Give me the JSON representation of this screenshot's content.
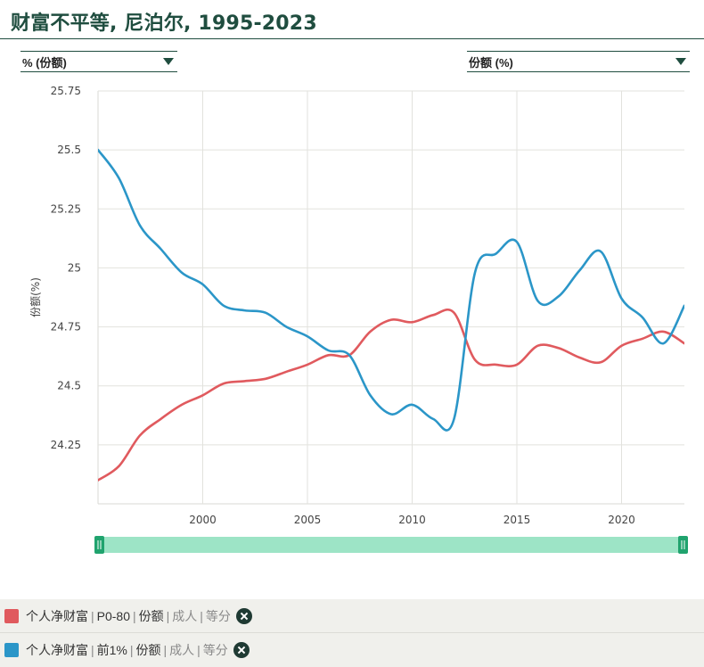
{
  "page": {
    "title": "财富不平等, 尼泊尔, 1995-2023"
  },
  "selectors": {
    "left_label": "% (份额)",
    "right_label": "份额 (%)"
  },
  "legend": [
    {
      "color": "#e05a5e",
      "parts": [
        "个人净财富",
        "P0-80",
        "份额",
        "成人",
        "等分"
      ]
    },
    {
      "color": "#2b96c8",
      "parts": [
        "个人净财富",
        "前1%",
        "份额",
        "成人",
        "等分"
      ]
    }
  ],
  "chart_data": {
    "type": "line",
    "ylabel": "份额(%)",
    "xlim": [
      1995,
      2023
    ],
    "ylim": [
      24.0,
      25.75
    ],
    "yticks": [
      24.25,
      24.5,
      24.75,
      25,
      25.25,
      25.5,
      25.75
    ],
    "ytick_labels": [
      "24.25",
      "24.5",
      "24.75",
      "25",
      "25.25",
      "25.5",
      "25.75"
    ],
    "xticks": [
      2000,
      2005,
      2010,
      2015,
      2020
    ],
    "grid": true,
    "x": [
      1995,
      1996,
      1997,
      1998,
      1999,
      2000,
      2001,
      2002,
      2003,
      2004,
      2005,
      2006,
      2007,
      2008,
      2009,
      2010,
      2011,
      2012,
      2013,
      2014,
      2015,
      2016,
      2017,
      2018,
      2019,
      2020,
      2021,
      2022,
      2023
    ],
    "series": [
      {
        "name": "个人净财富 | P0-80 | 份额 | 成人 | 等分",
        "color": "#e05a5e",
        "values": [
          24.1,
          24.16,
          24.29,
          24.36,
          24.42,
          24.46,
          24.51,
          24.52,
          24.53,
          24.56,
          24.59,
          24.63,
          24.63,
          24.73,
          24.78,
          24.77,
          24.8,
          24.81,
          24.61,
          24.59,
          24.59,
          24.67,
          24.66,
          24.62,
          24.6,
          24.67,
          24.7,
          24.73,
          24.68
        ]
      },
      {
        "name": "个人净财富 | 前1% | 份额 | 成人 | 等分",
        "color": "#2b96c8",
        "values": [
          25.5,
          25.38,
          25.18,
          25.08,
          24.98,
          24.93,
          24.84,
          24.82,
          24.81,
          24.75,
          24.71,
          24.65,
          24.63,
          24.46,
          24.38,
          24.42,
          24.36,
          24.36,
          24.98,
          25.06,
          25.11,
          24.86,
          24.88,
          24.99,
          25.07,
          24.87,
          24.79,
          24.68,
          24.84
        ]
      }
    ]
  },
  "slider": {
    "range_color": "#9de4c6",
    "handle_color": "#20a36e"
  }
}
